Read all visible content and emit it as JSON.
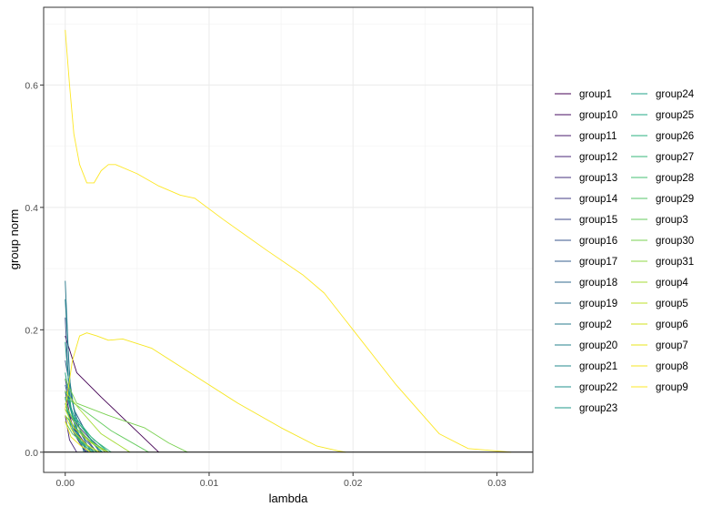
{
  "chart_data": {
    "type": "line",
    "title": "",
    "xlabel": "lambda",
    "ylabel": "group norm",
    "xlim": [
      -0.0015,
      0.0325
    ],
    "ylim": [
      -0.033,
      0.727
    ],
    "x_ticks": [
      {
        "value": 0.0,
        "label": "0.00"
      },
      {
        "value": 0.01,
        "label": "0.01"
      },
      {
        "value": 0.02,
        "label": "0.02"
      },
      {
        "value": 0.03,
        "label": "0.03"
      }
    ],
    "y_ticks": [
      {
        "value": 0.0,
        "label": "0.0"
      },
      {
        "value": 0.2,
        "label": "0.2"
      },
      {
        "value": 0.4,
        "label": "0.4"
      },
      {
        "value": 0.6,
        "label": "0.6"
      }
    ],
    "grid": true,
    "hline": 0,
    "legend_position": "right",
    "legend_columns": 2,
    "series": [
      {
        "name": "group1",
        "color": "#440154",
        "x": [
          0.0,
          0.0008,
          0.0025,
          0.0045,
          0.0065
        ],
        "y": [
          0.19,
          0.13,
          0.09,
          0.045,
          0.0
        ]
      },
      {
        "name": "group10",
        "color": "#470E61",
        "x": [
          0.0,
          0.0004,
          0.001,
          0.0016
        ],
        "y": [
          0.1,
          0.05,
          0.02,
          0.0
        ]
      },
      {
        "name": "group11",
        "color": "#481B6D",
        "x": [
          0.0,
          0.0005,
          0.0012,
          0.002
        ],
        "y": [
          0.08,
          0.045,
          0.02,
          0.0
        ]
      },
      {
        "name": "group12",
        "color": "#482677",
        "x": [
          0.0,
          0.0003,
          0.0008
        ],
        "y": [
          0.06,
          0.02,
          0.0
        ]
      },
      {
        "name": "group13",
        "color": "#46327E",
        "x": [
          0.0,
          0.0004,
          0.001,
          0.0015
        ],
        "y": [
          0.09,
          0.04,
          0.015,
          0.0
        ]
      },
      {
        "name": "group14",
        "color": "#433E85",
        "x": [
          0.0,
          0.0006,
          0.0016,
          0.0028
        ],
        "y": [
          0.07,
          0.05,
          0.025,
          0.0
        ]
      },
      {
        "name": "group15",
        "color": "#3E4A89",
        "x": [
          0.0,
          0.0005,
          0.0012,
          0.0022
        ],
        "y": [
          0.12,
          0.06,
          0.03,
          0.0
        ]
      },
      {
        "name": "group16",
        "color": "#39558C",
        "x": [
          0.0,
          0.0003,
          0.0009,
          0.0014
        ],
        "y": [
          0.22,
          0.08,
          0.02,
          0.0
        ]
      },
      {
        "name": "group17",
        "color": "#355F8D",
        "x": [
          0.0,
          0.0006,
          0.0015,
          0.0024
        ],
        "y": [
          0.15,
          0.07,
          0.03,
          0.0
        ]
      },
      {
        "name": "group18",
        "color": "#31688E",
        "x": [
          0.0,
          0.0005,
          0.0014,
          0.0022
        ],
        "y": [
          0.11,
          0.06,
          0.02,
          0.0
        ]
      },
      {
        "name": "group19",
        "color": "#2D718E",
        "x": [
          0.0,
          0.0004,
          0.0012,
          0.0018
        ],
        "y": [
          0.09,
          0.04,
          0.015,
          0.0
        ]
      },
      {
        "name": "group2",
        "color": "#2A7B8E",
        "x": [
          0.0,
          0.0003,
          0.0008,
          0.0013
        ],
        "y": [
          0.28,
          0.12,
          0.04,
          0.0
        ]
      },
      {
        "name": "group20",
        "color": "#26828E",
        "x": [
          0.0,
          0.0004,
          0.0011,
          0.0018
        ],
        "y": [
          0.25,
          0.09,
          0.03,
          0.0
        ]
      },
      {
        "name": "group21",
        "color": "#238A8D",
        "x": [
          0.0,
          0.0006,
          0.0016,
          0.0026
        ],
        "y": [
          0.1,
          0.05,
          0.02,
          0.0
        ]
      },
      {
        "name": "group22",
        "color": "#21918C",
        "x": [
          0.0,
          0.0005,
          0.0013,
          0.002
        ],
        "y": [
          0.08,
          0.04,
          0.015,
          0.0
        ]
      },
      {
        "name": "group23",
        "color": "#1F9A8A",
        "x": [
          0.0,
          0.0004,
          0.001,
          0.0016
        ],
        "y": [
          0.18,
          0.07,
          0.02,
          0.0
        ]
      },
      {
        "name": "group24",
        "color": "#1FA188",
        "x": [
          0.0,
          0.0006,
          0.0018,
          0.003
        ],
        "y": [
          0.1,
          0.06,
          0.025,
          0.0
        ]
      },
      {
        "name": "group25",
        "color": "#22A884",
        "x": [
          0.0,
          0.0005,
          0.0015,
          0.0025
        ],
        "y": [
          0.13,
          0.06,
          0.03,
          0.0
        ]
      },
      {
        "name": "group26",
        "color": "#2AB07F",
        "x": [
          0.0,
          0.0004,
          0.0011,
          0.0019
        ],
        "y": [
          0.09,
          0.04,
          0.015,
          0.0
        ]
      },
      {
        "name": "group27",
        "color": "#35B779",
        "x": [
          0.0,
          0.0008,
          0.002,
          0.0032
        ],
        "y": [
          0.07,
          0.05,
          0.02,
          0.0
        ]
      },
      {
        "name": "group28",
        "color": "#44BF70",
        "x": [
          0.0,
          0.0007,
          0.0018,
          0.003
        ],
        "y": [
          0.06,
          0.04,
          0.018,
          0.0
        ]
      },
      {
        "name": "group29",
        "color": "#54C568",
        "x": [
          0.0,
          0.0005,
          0.0014,
          0.0022
        ],
        "y": [
          0.05,
          0.03,
          0.012,
          0.0
        ]
      },
      {
        "name": "group3",
        "color": "#65CB5E",
        "x": [
          0.0,
          0.0012,
          0.0032,
          0.0058
        ],
        "y": [
          0.09,
          0.07,
          0.035,
          0.0
        ]
      },
      {
        "name": "group30",
        "color": "#7AD151",
        "x": [
          0.0,
          0.0008,
          0.003,
          0.0055,
          0.0072,
          0.0085
        ],
        "y": [
          0.12,
          0.08,
          0.06,
          0.04,
          0.015,
          0.0
        ]
      },
      {
        "name": "group31",
        "color": "#8FD744",
        "x": [
          0.0,
          0.0006,
          0.0016,
          0.0028
        ],
        "y": [
          0.08,
          0.05,
          0.02,
          0.0
        ]
      },
      {
        "name": "group4",
        "color": "#A5DB36",
        "x": [
          0.0,
          0.001,
          0.0025,
          0.0045
        ],
        "y": [
          0.1,
          0.07,
          0.03,
          0.0
        ]
      },
      {
        "name": "group5",
        "color": "#BCDF27",
        "x": [
          0.0,
          0.0006,
          0.0018,
          0.003
        ],
        "y": [
          0.07,
          0.04,
          0.015,
          0.0
        ]
      },
      {
        "name": "group6",
        "color": "#D2E21B",
        "x": [
          0.0,
          0.0005,
          0.0015,
          0.0024
        ],
        "y": [
          0.06,
          0.035,
          0.012,
          0.0
        ]
      },
      {
        "name": "group7",
        "color": "#E8E419",
        "x": [
          0.0,
          0.0004,
          0.0011,
          0.0018
        ],
        "y": [
          0.05,
          0.025,
          0.01,
          0.0
        ]
      },
      {
        "name": "group8",
        "color": "#F6E620",
        "x": [
          0.0,
          0.0005,
          0.001,
          0.0015,
          0.0022,
          0.003,
          0.004,
          0.006,
          0.009,
          0.012,
          0.015,
          0.0175,
          0.019,
          0.0195
        ],
        "y": [
          0.07,
          0.15,
          0.19,
          0.195,
          0.19,
          0.183,
          0.185,
          0.17,
          0.125,
          0.08,
          0.04,
          0.01,
          0.002,
          0.0
        ]
      },
      {
        "name": "group9",
        "color": "#FDE725",
        "x": [
          0.0,
          0.0003,
          0.0006,
          0.001,
          0.0015,
          0.002,
          0.0025,
          0.003,
          0.0035,
          0.005,
          0.0065,
          0.008,
          0.009,
          0.011,
          0.014,
          0.0165,
          0.018,
          0.02,
          0.023,
          0.026,
          0.028,
          0.03,
          0.031
        ],
        "y": [
          0.69,
          0.6,
          0.52,
          0.47,
          0.44,
          0.44,
          0.46,
          0.47,
          0.47,
          0.455,
          0.435,
          0.42,
          0.415,
          0.38,
          0.33,
          0.29,
          0.26,
          0.2,
          0.11,
          0.03,
          0.006,
          0.002,
          0.0
        ]
      }
    ]
  }
}
